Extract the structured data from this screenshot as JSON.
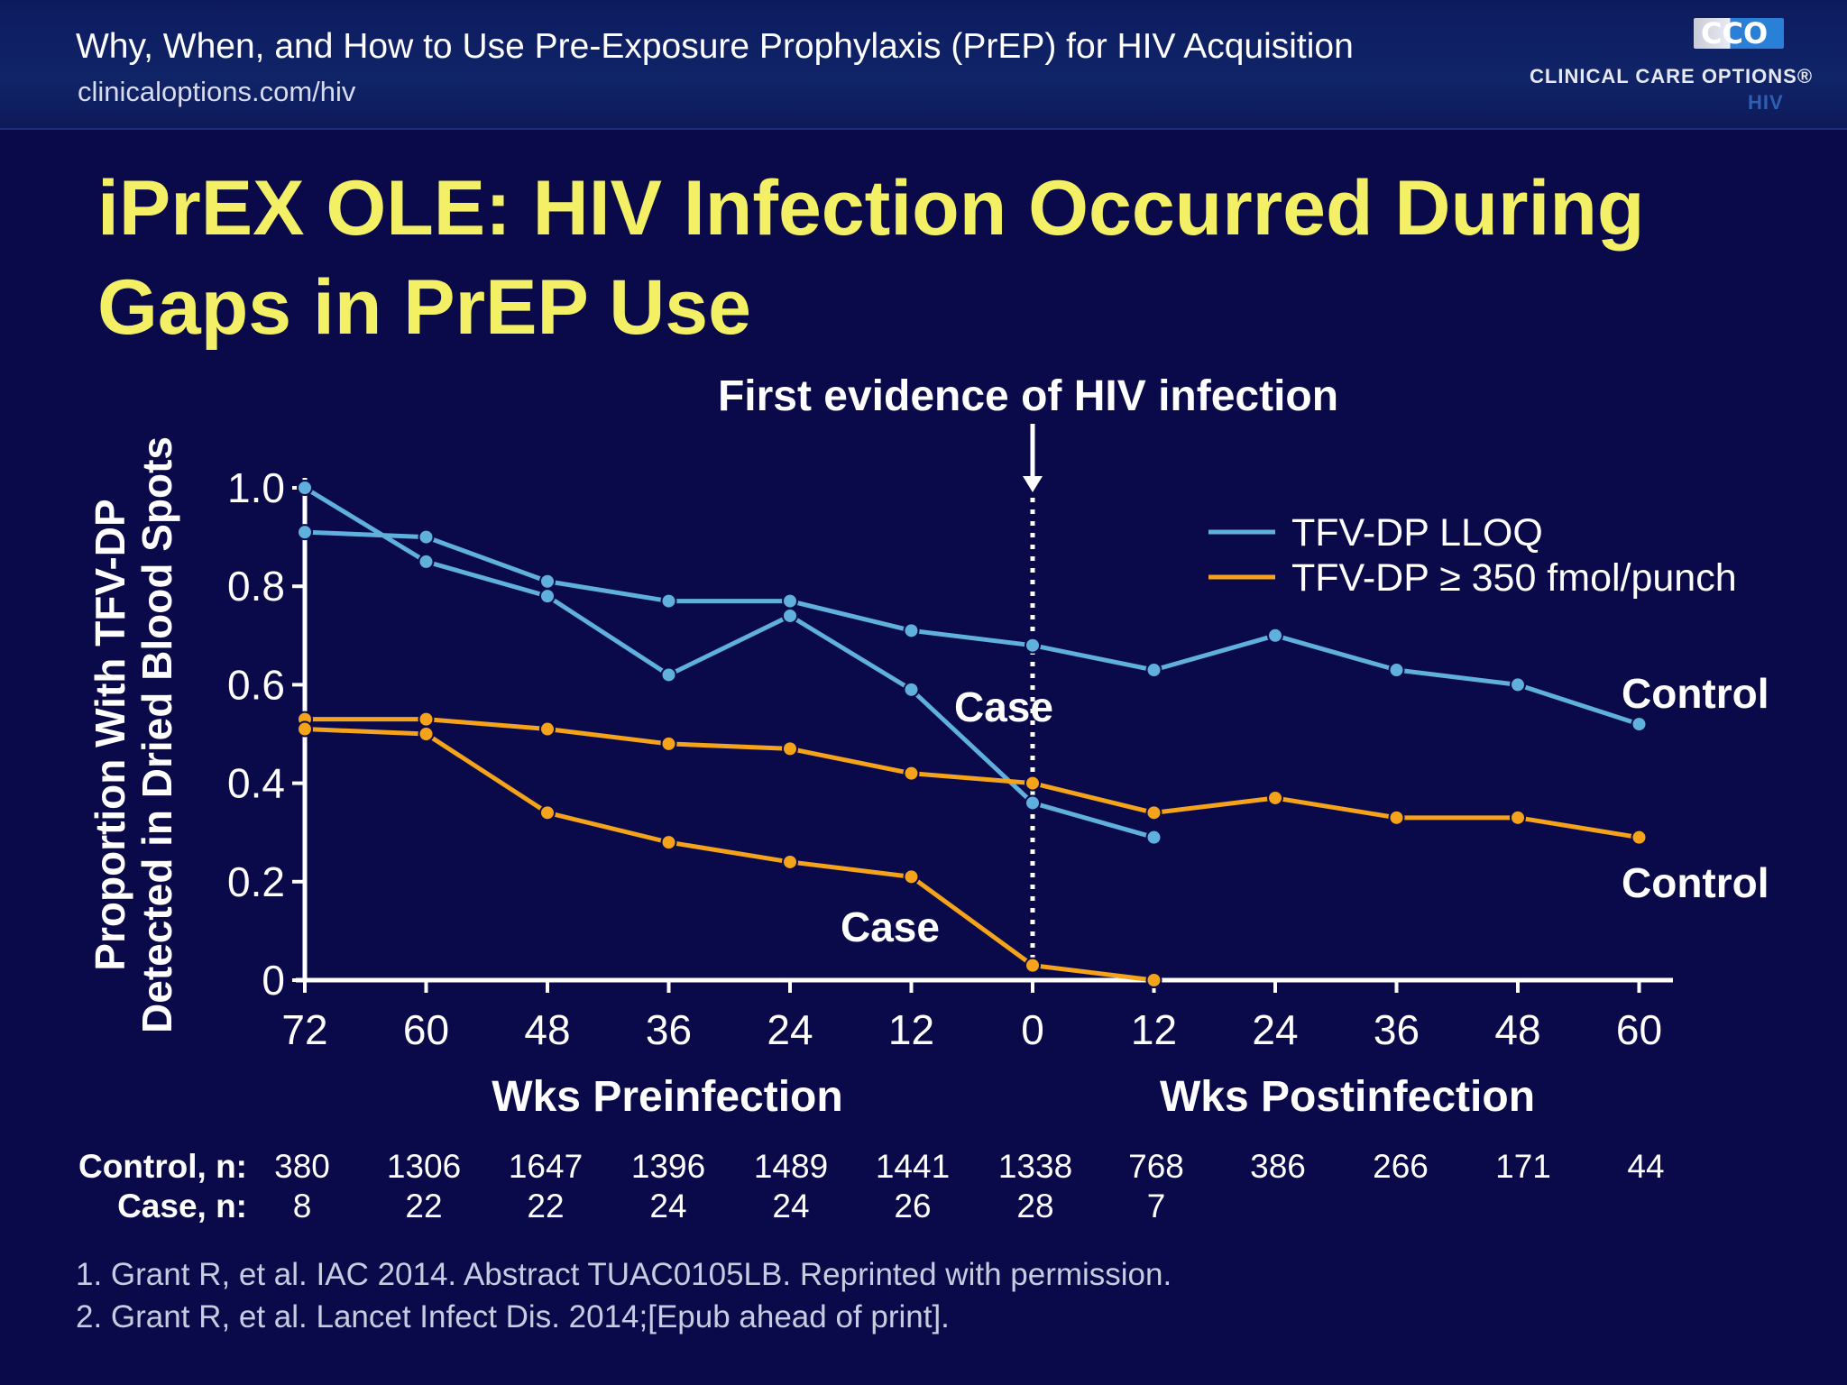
{
  "header": {
    "subtitle": "Why, When, and How to Use Pre-Exposure Prophylaxis (PrEP) for HIV Acquisition",
    "url": "clinicaloptions.com/hiv",
    "logo": {
      "letters": "CCO",
      "name": "CLINICAL CARE OPTIONS®",
      "sub": "HIV"
    }
  },
  "slide": {
    "title": "iPrEX OLE: HIV Infection Occurred During Gaps in PrEP Use"
  },
  "chart_data": {
    "type": "line",
    "annotation": "First evidence of HIV infection",
    "ylabel_line1": "Proportion With TFV-DP",
    "ylabel_line2": "Detected in Dried Blood Spots",
    "ylim": [
      0,
      1.0
    ],
    "yticks": [
      "0",
      "0.2",
      "0.4",
      "0.6",
      "0.8",
      "1.0"
    ],
    "ytick_values": [
      0,
      0.2,
      0.4,
      0.6,
      0.8,
      1.0
    ],
    "x_tick_labels": [
      "72",
      "60",
      "48",
      "36",
      "24",
      "12",
      "0",
      "12",
      "24",
      "36",
      "48",
      "60"
    ],
    "x_group_labels": [
      "Wks Preinfection",
      "Wks Postinfection"
    ],
    "legend": [
      {
        "label": "TFV-DP LLOQ",
        "color": "#5fb0dc"
      },
      {
        "label": "TFV-DP ≥ 350 fmol/punch",
        "color": "#f4a31b"
      }
    ],
    "series": [
      {
        "label": "Control",
        "color": "#5fb0dc",
        "x": [
          "72",
          "60",
          "48",
          "36",
          "24",
          "12",
          "0",
          "12",
          "24",
          "36",
          "48",
          "60"
        ],
        "values": [
          0.91,
          0.9,
          0.81,
          0.77,
          0.77,
          0.71,
          0.68,
          0.63,
          0.7,
          0.63,
          0.6,
          0.52
        ]
      },
      {
        "label": "Case",
        "color": "#5fb0dc",
        "x": [
          "72",
          "60",
          "48",
          "36",
          "24",
          "12",
          "0",
          "12"
        ],
        "values": [
          1.0,
          0.85,
          0.78,
          0.62,
          0.74,
          0.59,
          0.36,
          0.29
        ]
      },
      {
        "label": "Control",
        "color": "#f4a31b",
        "x": [
          "72",
          "60",
          "48",
          "36",
          "24",
          "12",
          "0",
          "12",
          "24",
          "36",
          "48",
          "60"
        ],
        "values": [
          0.53,
          0.53,
          0.51,
          0.48,
          0.47,
          0.42,
          0.4,
          0.34,
          0.37,
          0.33,
          0.33,
          0.29
        ]
      },
      {
        "label": "Case",
        "color": "#f4a31b",
        "x": [
          "72",
          "60",
          "48",
          "36",
          "24",
          "12",
          "0",
          "12"
        ],
        "values": [
          0.51,
          0.5,
          0.34,
          0.28,
          0.24,
          0.21,
          0.03,
          0.0
        ]
      }
    ],
    "n_table": {
      "rows": [
        {
          "label": "Control, n:",
          "values": [
            "380",
            "1306",
            "1647",
            "1396",
            "1489",
            "1441",
            "1338",
            "768",
            "386",
            "266",
            "171",
            "44"
          ]
        },
        {
          "label": "Case, n:",
          "values": [
            "8",
            "22",
            "22",
            "24",
            "24",
            "26",
            "28",
            "7"
          ]
        }
      ]
    }
  },
  "footnotes": [
    "1. Grant R, et al. IAC 2014. Abstract TUAC0105LB. Reprinted with permission.",
    "2. Grant R, et al. Lancet Infect Dis. 2014;[Epub ahead of print]."
  ]
}
